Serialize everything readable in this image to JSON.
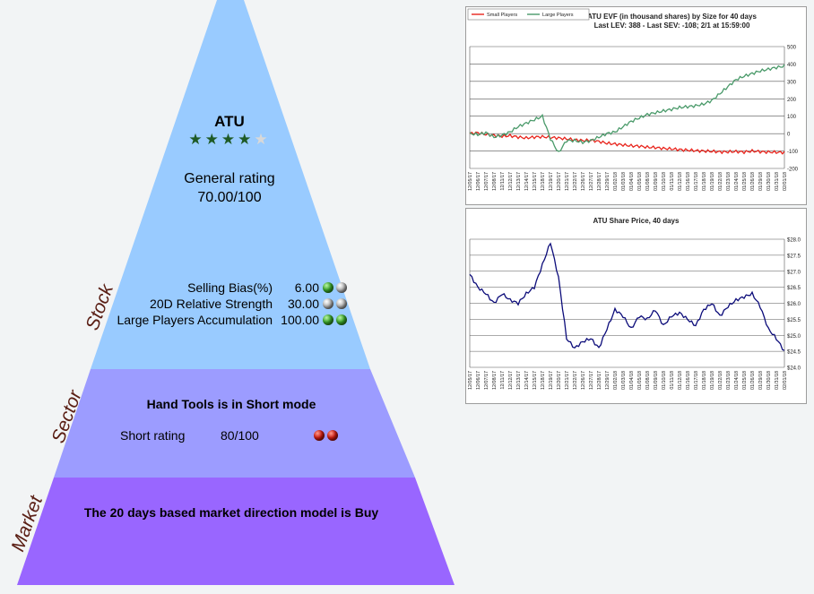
{
  "stock": {
    "symbol": "ATU",
    "stars": {
      "filled": 4,
      "total": 5
    },
    "general_rating_label": "General rating",
    "general_rating_value": "70.00/100",
    "rows": [
      {
        "label": "Selling Bias(%)",
        "value": "6.00",
        "balls": [
          "green",
          "grey"
        ]
      },
      {
        "label": "20D Relative Strength",
        "value": "30.00",
        "balls": [
          "grey",
          "grey"
        ]
      },
      {
        "label": "Large Players Accumulation",
        "value": "100.00",
        "balls": [
          "green",
          "green"
        ]
      }
    ]
  },
  "sector": {
    "headline": "Hand Tools is in Short mode",
    "short_rating_label": "Short rating",
    "short_rating_value": "80/100",
    "balls": [
      "red",
      "red"
    ]
  },
  "market": {
    "headline": "The 20 days based market direction model is Buy"
  },
  "levels": {
    "stock": "Stock",
    "sector": "Sector",
    "market": "Market"
  },
  "colors": {
    "stock": "#99cbff",
    "sector": "#9c9cff",
    "market": "#9966ff",
    "star": "#1e5a25"
  },
  "chart_data": [
    {
      "type": "line",
      "title": "ATU EVF (in thousand shares) by Size for 40 days",
      "subtitle": "Last LEV: 388 - Last SEV: -108; 2/1 at 15:59:00",
      "ylim": [
        -200,
        500
      ],
      "yticks": [
        "500",
        "400",
        "300",
        "200",
        "100",
        "0",
        "-100",
        "-200"
      ],
      "legend_position": "top-left",
      "x_labels": [
        "12/05/17",
        "12/06/17",
        "12/07/17",
        "12/08/17",
        "12/11/17",
        "12/12/17",
        "12/13/17",
        "12/14/17",
        "12/15/17",
        "12/18/17",
        "12/19/17",
        "12/20/17",
        "12/21/17",
        "12/22/17",
        "12/26/17",
        "12/27/17",
        "12/28/17",
        "12/29/17",
        "01/02/18",
        "01/03/18",
        "01/04/18",
        "01/05/18",
        "01/08/18",
        "01/09/18",
        "01/10/18",
        "01/11/18",
        "01/12/18",
        "01/16/18",
        "01/17/18",
        "01/18/18",
        "01/19/18",
        "01/22/18",
        "01/23/18",
        "01/24/18",
        "01/25/18",
        "01/26/18",
        "01/29/18",
        "01/30/18",
        "01/31/18",
        "02/01/18"
      ],
      "series": [
        {
          "name": "Small Players",
          "color": "#e8241c",
          "values": [
            0,
            5,
            -5,
            -10,
            -15,
            -12,
            -20,
            -25,
            -20,
            -18,
            -22,
            -25,
            -30,
            -35,
            -40,
            -38,
            -45,
            -55,
            -60,
            -65,
            -70,
            -72,
            -78,
            -80,
            -85,
            -88,
            -92,
            -95,
            -98,
            -100,
            -102,
            -105,
            -105,
            -103,
            -106,
            -100,
            -104,
            -106,
            -107,
            -108
          ]
        },
        {
          "name": "Large Players",
          "color": "#4a9a6a",
          "values": [
            0,
            -5,
            5,
            -20,
            -10,
            10,
            40,
            60,
            80,
            100,
            -30,
            -110,
            -40,
            -40,
            -50,
            -40,
            -20,
            0,
            10,
            40,
            70,
            90,
            110,
            120,
            130,
            140,
            150,
            155,
            160,
            170,
            190,
            230,
            270,
            310,
            330,
            345,
            360,
            370,
            380,
            388
          ]
        }
      ]
    },
    {
      "type": "line",
      "title": "ATU Share Price, 40 days",
      "ylim": [
        24.0,
        28.0
      ],
      "yticks": [
        "$28.0",
        "$27.5",
        "$27.0",
        "$26.5",
        "$26.0",
        "$25.5",
        "$25.0",
        "$24.5",
        "$24.0"
      ],
      "x_labels": [
        "12/05/17",
        "12/06/17",
        "12/07/17",
        "12/08/17",
        "12/11/17",
        "12/12/17",
        "12/13/17",
        "12/14/17",
        "12/15/17",
        "12/18/17",
        "12/19/17",
        "12/20/17",
        "12/21/17",
        "12/22/17",
        "12/26/17",
        "12/27/17",
        "12/28/17",
        "12/29/17",
        "01/02/18",
        "01/03/18",
        "01/04/18",
        "01/05/18",
        "01/08/18",
        "01/09/18",
        "01/10/18",
        "01/11/18",
        "01/12/18",
        "01/16/18",
        "01/17/18",
        "01/18/18",
        "01/19/18",
        "01/22/18",
        "01/23/18",
        "01/24/18",
        "01/25/18",
        "01/26/18",
        "01/29/18",
        "01/30/18",
        "01/31/18",
        "02/01/18"
      ],
      "series": [
        {
          "name": "",
          "color": "#0c0c7a",
          "values": [
            26.9,
            26.5,
            26.3,
            26.0,
            26.3,
            26.1,
            26.0,
            26.3,
            26.5,
            27.2,
            27.9,
            26.8,
            24.9,
            24.6,
            24.8,
            24.9,
            24.6,
            25.2,
            25.8,
            25.6,
            25.2,
            25.6,
            25.5,
            25.8,
            25.3,
            25.6,
            25.7,
            25.5,
            25.3,
            25.8,
            26.0,
            25.6,
            25.9,
            26.1,
            26.2,
            26.3,
            25.9,
            25.2,
            24.9,
            24.5
          ]
        }
      ]
    }
  ]
}
